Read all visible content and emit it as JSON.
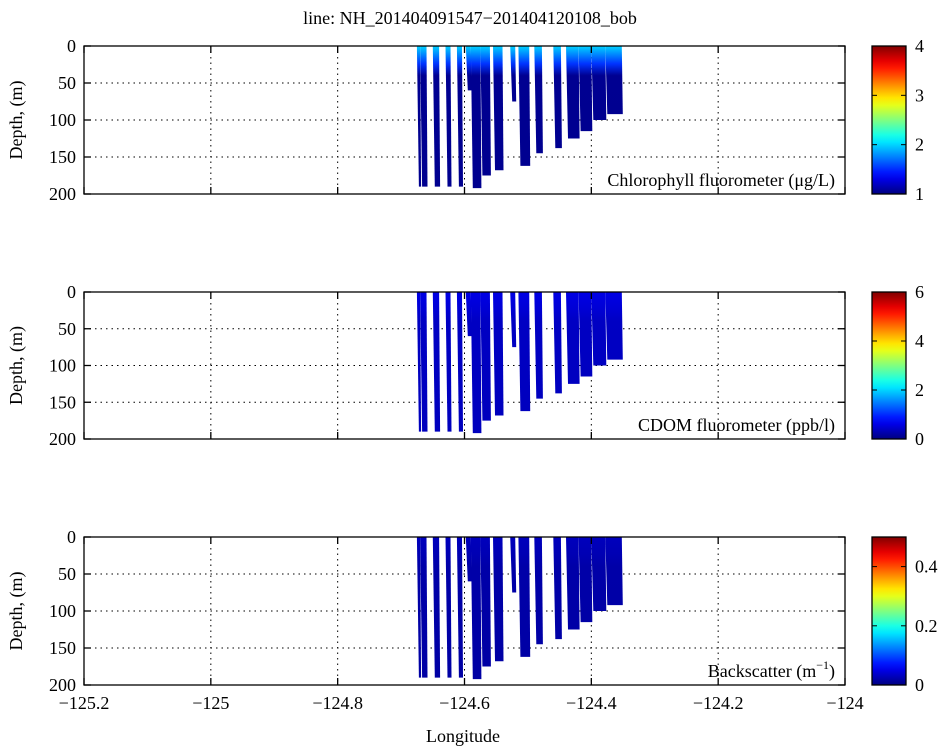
{
  "chart_data": {
    "type": "heatmap",
    "title": "line: NH_201404091547−201404120108_bob",
    "xlabel": "Longitude",
    "xlim": [
      -125.2,
      -124.0
    ],
    "x_ticks": [
      -125.2,
      -125.0,
      -124.8,
      -124.6,
      -124.4,
      -124.2,
      -124.0
    ],
    "x_tick_labels": [
      "−125.2",
      "−125",
      "−124.8",
      "−124.6",
      "−124.4",
      "−124.2",
      "−124"
    ],
    "grid": "dotted",
    "panels": [
      {
        "name": "Chlorophyll fluorometer (μg/L)",
        "ylabel": "Depth, (m)",
        "ylim": [
          0,
          200
        ],
        "y_ticks": [
          0,
          50,
          100,
          150,
          200
        ],
        "y_tick_labels": [
          "0",
          "50",
          "100",
          "150",
          "200"
        ],
        "colorbar": {
          "range": [
            1,
            4
          ],
          "ticks": [
            1,
            2,
            3,
            4
          ],
          "tick_labels": [
            "1",
            "2",
            "3",
            "4"
          ]
        },
        "surface_value": 2.0,
        "background_value": 1.05
      },
      {
        "name": "CDOM fluorometer (ppb/l)",
        "ylabel": "Depth, (m)",
        "ylim": [
          0,
          200
        ],
        "y_ticks": [
          0,
          50,
          100,
          150,
          200
        ],
        "y_tick_labels": [
          "0",
          "50",
          "100",
          "150",
          "200"
        ],
        "colorbar": {
          "range": [
            0,
            6
          ],
          "ticks": [
            0,
            2,
            4,
            6
          ],
          "tick_labels": [
            "0",
            "2",
            "4",
            "6"
          ]
        },
        "surface_value": 0.6,
        "background_value": 0.4
      },
      {
        "name": "Backscatter (m⁻¹)",
        "name_base": "Backscatter (m",
        "name_sup": "−1",
        "name_end": ")",
        "ylabel": "Depth, (m)",
        "ylim": [
          0,
          200
        ],
        "y_ticks": [
          0,
          50,
          100,
          150,
          200
        ],
        "y_tick_labels": [
          "0",
          "50",
          "100",
          "150",
          "200"
        ],
        "colorbar": {
          "range": [
            0,
            0.5
          ],
          "ticks": [
            0,
            0.2,
            0.4
          ],
          "tick_labels": [
            "0",
            "0.2",
            "0.4"
          ]
        },
        "surface_value": 0.03,
        "background_value": 0.02
      }
    ],
    "profiles": [
      {
        "lon": -124.675,
        "lon_end": -124.67,
        "max_depth": 190
      },
      {
        "lon": -124.67,
        "lon_end": -124.66,
        "max_depth": 190
      },
      {
        "lon": -124.65,
        "lon_end": -124.64,
        "max_depth": 190
      },
      {
        "lon": -124.63,
        "lon_end": -124.622,
        "max_depth": 190
      },
      {
        "lon": -124.612,
        "lon_end": -124.604,
        "max_depth": 190
      },
      {
        "lon": -124.598,
        "lon_end": -124.59,
        "max_depth": 60
      },
      {
        "lon": -124.59,
        "lon_end": -124.575,
        "max_depth": 192
      },
      {
        "lon": -124.575,
        "lon_end": -124.56,
        "max_depth": 175
      },
      {
        "lon": -124.555,
        "lon_end": -124.54,
        "max_depth": 168
      },
      {
        "lon": -124.528,
        "lon_end": -124.52,
        "max_depth": 75
      },
      {
        "lon": -124.515,
        "lon_end": -124.498,
        "max_depth": 162
      },
      {
        "lon": -124.49,
        "lon_end": -124.478,
        "max_depth": 145
      },
      {
        "lon": -124.46,
        "lon_end": -124.448,
        "max_depth": 138
      },
      {
        "lon": -124.44,
        "lon_end": -124.42,
        "max_depth": 125
      },
      {
        "lon": -124.42,
        "lon_end": -124.4,
        "max_depth": 115
      },
      {
        "lon": -124.4,
        "lon_end": -124.378,
        "max_depth": 100
      },
      {
        "lon": -124.378,
        "lon_end": -124.352,
        "max_depth": 92
      }
    ]
  }
}
